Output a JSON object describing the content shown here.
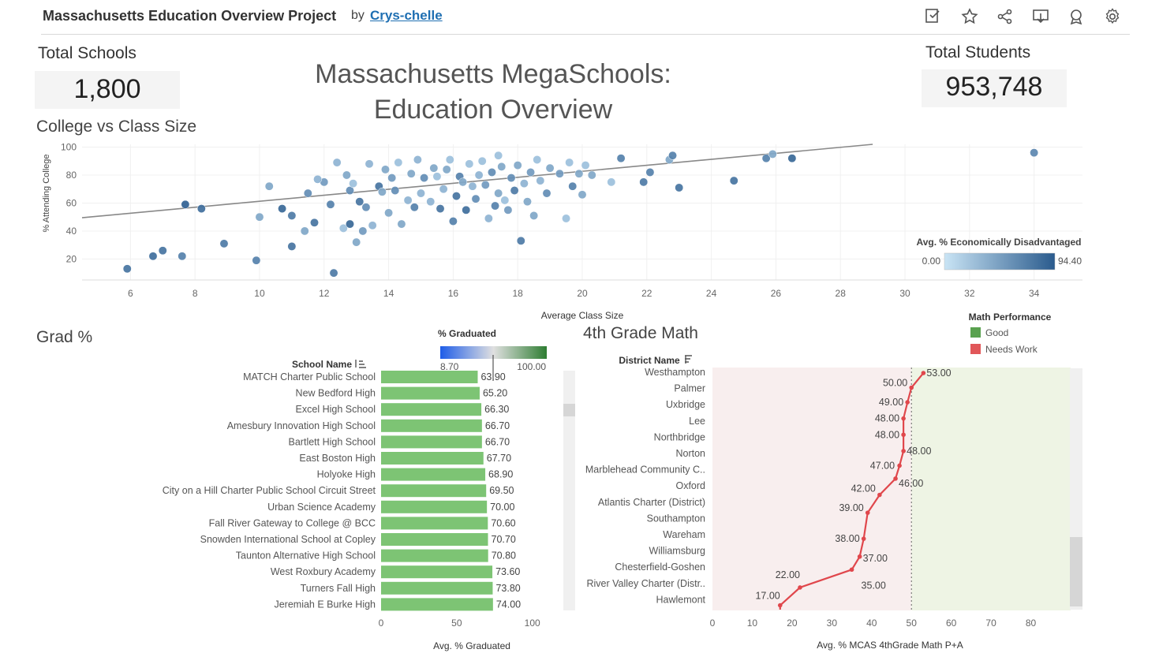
{
  "header": {
    "title": "Massachusetts Education Overview Project",
    "by": "by",
    "author": "Crys-chelle",
    "icons": [
      "edit-icon",
      "star-icon",
      "share-icon",
      "download-icon",
      "metrics-icon",
      "settings-icon"
    ]
  },
  "kpis": {
    "total_schools_label": "Total Schools",
    "total_schools_value": "1,800",
    "total_students_label": "Total Students",
    "total_students_value": "953,748"
  },
  "dashboard_title_line1": "Massachusetts MegaSchools:",
  "dashboard_title_line2": "Education Overview",
  "colors": {
    "scatter_light": "#b9d9f0",
    "scatter_dark": "#2a5b8d",
    "grad_bar": "#7dc474",
    "math_line": "#e0474c",
    "good_region": "#eef4e4",
    "needs_work_region": "#f8eeee",
    "legend_good": "#59a14f",
    "legend_needs": "#e15759"
  },
  "scatter": {
    "title": "College vs Class Size",
    "xlabel": "Average Class Size",
    "ylabel": "% Attending College",
    "xticks": [
      "6",
      "8",
      "10",
      "12",
      "14",
      "16",
      "18",
      "20",
      "22",
      "24",
      "26",
      "28",
      "30",
      "32",
      "34"
    ],
    "yticks": [
      "20",
      "40",
      "60",
      "80",
      "100"
    ],
    "legend_title": "Avg. % Economically Disadvantaged",
    "legend_min": "0.00",
    "legend_max": "94.40"
  },
  "grad": {
    "title": "Grad %",
    "column_header": "School Name",
    "legend_title": "% Graduated",
    "legend_min": "8.70",
    "legend_max": "100.00",
    "xlabel": "Avg. % Graduated",
    "xticks": [
      "0",
      "50",
      "100"
    ]
  },
  "math": {
    "title": "4th Grade Math",
    "column_header": "District Name",
    "xlabel": "Avg. % MCAS 4thGrade Math P+A",
    "xticks": [
      "0",
      "10",
      "20",
      "30",
      "40",
      "50",
      "60",
      "70",
      "80"
    ],
    "legend_title": "Math Performance",
    "legend_good": "Good",
    "legend_needs": "Needs Work"
  },
  "chart_data": [
    {
      "type": "scatter",
      "title": "College vs Class Size",
      "xlabel": "Average Class Size",
      "ylabel": "% Attending College",
      "xlim": [
        4.5,
        35.5
      ],
      "ylim": [
        5,
        102
      ],
      "trend_line": [
        [
          4.5,
          49.5
        ],
        [
          29,
          102
        ]
      ],
      "color_by": "Avg. % Economically Disadvantaged",
      "points": [
        [
          5.9,
          13,
          80
        ],
        [
          6.7,
          22,
          85
        ],
        [
          7,
          26,
          80
        ],
        [
          7.6,
          22,
          70
        ],
        [
          7.7,
          59,
          95
        ],
        [
          8.2,
          56,
          85
        ],
        [
          8.9,
          31,
          75
        ],
        [
          9.9,
          19,
          70
        ],
        [
          10.3,
          72,
          40
        ],
        [
          10,
          50,
          40
        ],
        [
          10.7,
          56,
          90
        ],
        [
          11,
          51,
          75
        ],
        [
          11,
          29,
          80
        ],
        [
          11.4,
          40,
          40
        ],
        [
          11.7,
          46,
          80
        ],
        [
          12,
          75,
          50
        ],
        [
          12.2,
          59,
          70
        ],
        [
          12.3,
          10,
          75
        ],
        [
          11.5,
          67,
          60
        ],
        [
          12.6,
          42,
          20
        ],
        [
          12.8,
          45,
          90
        ],
        [
          12.8,
          69,
          60
        ],
        [
          13.1,
          61,
          80
        ],
        [
          13,
          32,
          40
        ],
        [
          13.3,
          57,
          60
        ],
        [
          13.2,
          40,
          50
        ],
        [
          13.5,
          44,
          30
        ],
        [
          13.7,
          72,
          80
        ],
        [
          13.9,
          84,
          40
        ],
        [
          14,
          53,
          40
        ],
        [
          14.4,
          45,
          40
        ],
        [
          14.2,
          69,
          60
        ],
        [
          14.6,
          62,
          30
        ],
        [
          14.7,
          81,
          40
        ],
        [
          14.8,
          57,
          70
        ],
        [
          15,
          67,
          30
        ],
        [
          15.1,
          78,
          60
        ],
        [
          15.3,
          61,
          30
        ],
        [
          15.4,
          85,
          40
        ],
        [
          15.6,
          56,
          80
        ],
        [
          15.7,
          70,
          30
        ],
        [
          15.8,
          84,
          40
        ],
        [
          16,
          47,
          70
        ],
        [
          16.1,
          65,
          80
        ],
        [
          16.2,
          79,
          70
        ],
        [
          16.4,
          55,
          85
        ],
        [
          16.5,
          88,
          20
        ],
        [
          16.6,
          72,
          30
        ],
        [
          16.7,
          63,
          60
        ],
        [
          16.8,
          80,
          30
        ],
        [
          16.9,
          90,
          20
        ],
        [
          17,
          73,
          50
        ],
        [
          17.1,
          49,
          30
        ],
        [
          17.2,
          82,
          60
        ],
        [
          17.3,
          58,
          70
        ],
        [
          17.4,
          67,
          40
        ],
        [
          17.5,
          86,
          40
        ],
        [
          17.6,
          62,
          20
        ],
        [
          17.7,
          55,
          50
        ],
        [
          17.8,
          78,
          60
        ],
        [
          17.9,
          69,
          75
        ],
        [
          18,
          87,
          40
        ],
        [
          18.1,
          33,
          75
        ],
        [
          18.2,
          74,
          30
        ],
        [
          18.3,
          61,
          40
        ],
        [
          18.4,
          82,
          50
        ],
        [
          18.5,
          51,
          40
        ],
        [
          18.7,
          76,
          30
        ],
        [
          18.9,
          67,
          60
        ],
        [
          19,
          85,
          40
        ],
        [
          19.3,
          81,
          50
        ],
        [
          19.5,
          49,
          20
        ],
        [
          19.7,
          72,
          70
        ],
        [
          19.9,
          81,
          40
        ],
        [
          20,
          66,
          40
        ],
        [
          20.3,
          80,
          40
        ],
        [
          20.9,
          75,
          20
        ],
        [
          21.2,
          92,
          70
        ],
        [
          21.9,
          75,
          75
        ],
        [
          22.1,
          82,
          70
        ],
        [
          22.7,
          91,
          40
        ],
        [
          22.8,
          94,
          70
        ],
        [
          23,
          71,
          80
        ],
        [
          24.7,
          76,
          80
        ],
        [
          25.7,
          92,
          70
        ],
        [
          25.9,
          95,
          40
        ],
        [
          26.5,
          92,
          90
        ],
        [
          34,
          96,
          65
        ],
        [
          12.9,
          74,
          20
        ],
        [
          13.4,
          88,
          30
        ],
        [
          14.1,
          78,
          50
        ],
        [
          15.9,
          91,
          20
        ],
        [
          16.3,
          75,
          40
        ],
        [
          17.4,
          94,
          20
        ],
        [
          18.6,
          91,
          20
        ],
        [
          19.6,
          89,
          20
        ],
        [
          20.1,
          87,
          20
        ],
        [
          14.9,
          91,
          30
        ],
        [
          15.5,
          79,
          20
        ],
        [
          13.8,
          68,
          40
        ],
        [
          12.4,
          89,
          30
        ],
        [
          12.7,
          80,
          40
        ],
        [
          11.8,
          77,
          30
        ],
        [
          14.3,
          89,
          20
        ]
      ]
    },
    {
      "type": "bar",
      "title": "Grad %",
      "xlabel": "Avg. % Graduated",
      "xlim": [
        0,
        120
      ],
      "categories": [
        "MATCH Charter Public School",
        "New Bedford High",
        "Excel High School",
        "Amesbury Innovation High School",
        "Bartlett High School",
        "East Boston High",
        "Holyoke High",
        "City on a Hill Charter Public School Circuit Street",
        "Urban Science Academy",
        "Fall River Gateway to College @ BCC",
        "Snowden International School at Copley",
        "Taunton Alternative High School",
        "West Roxbury Academy",
        "Turners Fall High",
        "Jeremiah E Burke High"
      ],
      "values": [
        63.9,
        65.2,
        66.3,
        66.7,
        66.7,
        67.7,
        68.9,
        69.5,
        70.0,
        70.6,
        70.7,
        70.8,
        73.6,
        73.8,
        74.0
      ],
      "labels": [
        "63.90",
        "65.20",
        "66.30",
        "66.70",
        "66.70",
        "67.70",
        "68.90",
        "69.50",
        "70.00",
        "70.60",
        "70.70",
        "70.80",
        "73.60",
        "73.80",
        "74.00"
      ]
    },
    {
      "type": "line",
      "title": "4th Grade Math",
      "xlabel": "Avg. % MCAS 4thGrade Math P+A",
      "xlim": [
        0,
        90
      ],
      "threshold": 50,
      "categories": [
        "Westhampton",
        "Palmer",
        "Uxbridge",
        "Lee",
        "Northbridge",
        "Norton",
        "Marblehead Community C..",
        "Oxford",
        "Atlantis Charter (District)",
        "Southampton",
        "Wareham",
        "Williamsburg",
        "Chesterfield-Goshen",
        "River Valley Charter (Distr..",
        "Hawlemont"
      ],
      "points": [
        {
          "x": 53,
          "y": 0.0,
          "label": "53.00"
        },
        {
          "x": 50,
          "y": 0.9,
          "label": "50.00"
        },
        {
          "x": 49,
          "y": 1.8,
          "label": "49.00"
        },
        {
          "x": 48,
          "y": 2.8,
          "label": "48.00"
        },
        {
          "x": 48,
          "y": 3.8,
          "label": "48.00"
        },
        {
          "x": 48,
          "y": 4.8,
          "label": "48.00"
        },
        {
          "x": 47,
          "y": 5.7,
          "label": "47.00"
        },
        {
          "x": 46,
          "y": 6.5,
          "label": "46.00"
        },
        {
          "x": 42,
          "y": 7.5,
          "label": "42.00"
        },
        {
          "x": 39,
          "y": 8.6,
          "label": "39.00"
        },
        {
          "x": 38,
          "y": 10.2,
          "label": "38.00"
        },
        {
          "x": 37,
          "y": 11.3,
          "label": "37.00"
        },
        {
          "x": 35,
          "y": 12.1,
          "label": "35.00"
        },
        {
          "x": 22,
          "y": 13.2,
          "label": "22.00"
        },
        {
          "x": 17,
          "y": 14.3,
          "label": "17.00"
        }
      ]
    }
  ]
}
